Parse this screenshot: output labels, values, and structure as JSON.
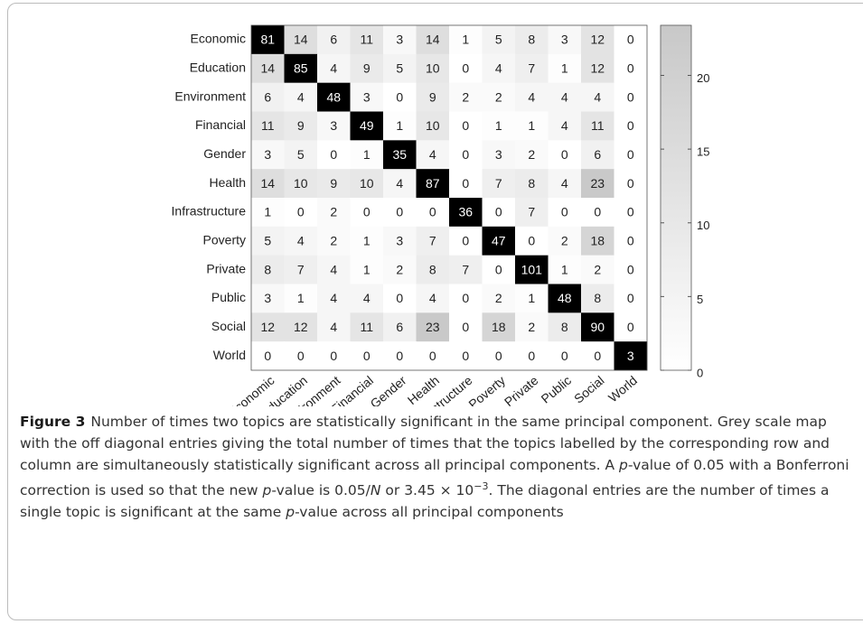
{
  "chart_data": {
    "type": "heatmap",
    "categories": [
      "Economic",
      "Education",
      "Environment",
      "Financial",
      "Gender",
      "Health",
      "Infrastructure",
      "Poverty",
      "Private",
      "Public",
      "Social",
      "World"
    ],
    "values": [
      [
        81,
        14,
        6,
        11,
        3,
        14,
        1,
        5,
        8,
        3,
        12,
        0
      ],
      [
        14,
        85,
        4,
        9,
        5,
        10,
        0,
        4,
        7,
        1,
        12,
        0
      ],
      [
        6,
        4,
        48,
        3,
        0,
        9,
        2,
        2,
        4,
        4,
        4,
        0
      ],
      [
        11,
        9,
        3,
        49,
        1,
        10,
        0,
        1,
        1,
        4,
        11,
        0
      ],
      [
        3,
        5,
        0,
        1,
        35,
        4,
        0,
        3,
        2,
        0,
        6,
        0
      ],
      [
        14,
        10,
        9,
        10,
        4,
        87,
        0,
        7,
        8,
        4,
        23,
        0
      ],
      [
        1,
        0,
        2,
        0,
        0,
        0,
        36,
        0,
        7,
        0,
        0,
        0
      ],
      [
        5,
        4,
        2,
        1,
        3,
        7,
        0,
        47,
        0,
        2,
        18,
        0
      ],
      [
        8,
        7,
        4,
        1,
        2,
        8,
        7,
        0,
        101,
        1,
        2,
        0
      ],
      [
        3,
        1,
        4,
        4,
        0,
        4,
        0,
        2,
        1,
        48,
        8,
        0
      ],
      [
        12,
        12,
        4,
        11,
        6,
        23,
        0,
        18,
        2,
        8,
        90,
        0
      ],
      [
        0,
        0,
        0,
        0,
        0,
        0,
        0,
        0,
        0,
        0,
        0,
        3
      ]
    ],
    "zlim": [
      0,
      23.4
    ],
    "zticks": [
      0,
      5,
      10,
      15,
      20
    ],
    "colors": [
      "#ffffff",
      "#c8c8c8"
    ],
    "diagonal_color": "#000000"
  },
  "caption": {
    "label": "Figure 3",
    "runs": [
      {
        "text": "Number of times two topics are statistically significant in the same principal component. Grey scale map with the off diagonal entries giving the total number of times that the topics labelled by the corresponding row and column are simultaneously statistically significant across all principal components. A "
      },
      {
        "text": "p",
        "italic": true
      },
      {
        "text": "-value of 0.05 with a Bonferroni correction is used so that the new "
      },
      {
        "text": "p",
        "italic": true
      },
      {
        "text": "-value is 0.05/"
      },
      {
        "text": "N",
        "italic": true
      },
      {
        "text": " or 3.45 × 10"
      },
      {
        "text": "−3",
        "sup": true
      },
      {
        "text": ". The diagonal entries are the number of times a single topic is significant at the same "
      },
      {
        "text": "p",
        "italic": true
      },
      {
        "text": "-value across all principal components"
      }
    ]
  }
}
